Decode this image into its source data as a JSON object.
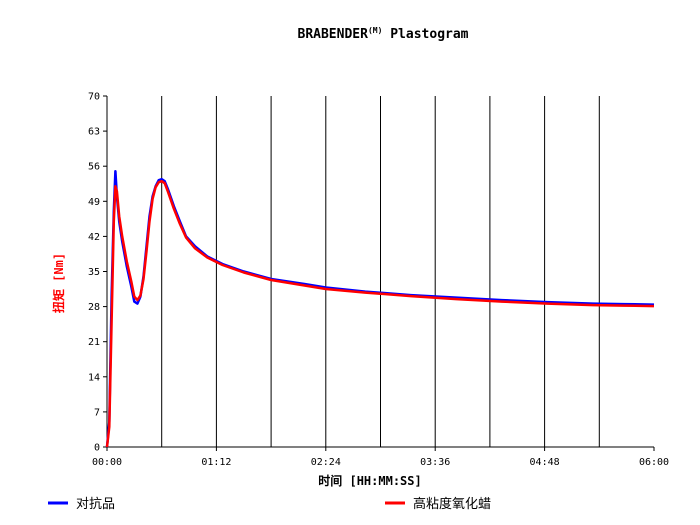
{
  "chart_data": {
    "type": "line",
    "title": "BRABENDER",
    "title_superscript": "(M)",
    "title_rest": " Plastogram",
    "xlabel": "时间 [HH:MM:SS]",
    "ylabel": "扭矩 [Nm]",
    "ylabel_color": "#ff0000",
    "xlim": [
      0,
      360
    ],
    "ylim": [
      0,
      70
    ],
    "x_unit": "minutes",
    "x_ticks": [
      {
        "value": 0,
        "label": "00:00"
      },
      {
        "value": 72,
        "label": "01:12"
      },
      {
        "value": 144,
        "label": "02:24"
      },
      {
        "value": 216,
        "label": "03:36"
      },
      {
        "value": 288,
        "label": "04:48"
      },
      {
        "value": 360,
        "label": "06:00"
      }
    ],
    "y_ticks": [
      0,
      7,
      14,
      21,
      28,
      35,
      42,
      49,
      56,
      63,
      70
    ],
    "vertical_gridlines": [
      36,
      72,
      108,
      144,
      180,
      216,
      252,
      288,
      324
    ],
    "legend_position": "bottom",
    "series": [
      {
        "name": "对抗品",
        "color": "#0000ff",
        "points": [
          [
            0,
            0
          ],
          [
            1.5,
            5
          ],
          [
            3,
            30
          ],
          [
            4.5,
            47
          ],
          [
            5.5,
            55
          ],
          [
            6.5,
            50
          ],
          [
            8,
            45
          ],
          [
            10,
            41
          ],
          [
            13,
            36
          ],
          [
            16,
            32
          ],
          [
            18,
            29
          ],
          [
            20,
            28.6
          ],
          [
            22,
            30
          ],
          [
            24,
            34
          ],
          [
            26,
            40
          ],
          [
            28,
            46
          ],
          [
            30,
            50
          ],
          [
            32,
            52
          ],
          [
            34,
            53.2
          ],
          [
            36,
            53.4
          ],
          [
            38,
            53
          ],
          [
            40,
            51.5
          ],
          [
            44,
            48
          ],
          [
            48,
            45
          ],
          [
            52,
            42
          ],
          [
            58,
            40
          ],
          [
            66,
            38
          ],
          [
            76,
            36.5
          ],
          [
            90,
            35
          ],
          [
            108,
            33.5
          ],
          [
            130,
            32.5
          ],
          [
            144,
            31.8
          ],
          [
            170,
            31
          ],
          [
            200,
            30.3
          ],
          [
            230,
            29.8
          ],
          [
            260,
            29.3
          ],
          [
            290,
            28.9
          ],
          [
            320,
            28.6
          ],
          [
            340,
            28.5
          ],
          [
            360,
            28.4
          ]
        ]
      },
      {
        "name": "高粘度氧化蜡",
        "color": "#ff0000",
        "points": [
          [
            0,
            0
          ],
          [
            1.5,
            4
          ],
          [
            3,
            25
          ],
          [
            4.5,
            45
          ],
          [
            5.5,
            52
          ],
          [
            6.5,
            51
          ],
          [
            8,
            46
          ],
          [
            10,
            42
          ],
          [
            13,
            37
          ],
          [
            16,
            33
          ],
          [
            18,
            30
          ],
          [
            20,
            29.3
          ],
          [
            22,
            30.2
          ],
          [
            24,
            33.5
          ],
          [
            26,
            39
          ],
          [
            28,
            45
          ],
          [
            30,
            49.5
          ],
          [
            32,
            51.8
          ],
          [
            34,
            52.8
          ],
          [
            36,
            53
          ],
          [
            38,
            52.6
          ],
          [
            40,
            51
          ],
          [
            44,
            47.5
          ],
          [
            48,
            44.5
          ],
          [
            52,
            41.8
          ],
          [
            58,
            39.6
          ],
          [
            66,
            37.8
          ],
          [
            76,
            36.3
          ],
          [
            90,
            34.8
          ],
          [
            108,
            33.3
          ],
          [
            130,
            32.2
          ],
          [
            144,
            31.5
          ],
          [
            170,
            30.8
          ],
          [
            200,
            30.1
          ],
          [
            230,
            29.5
          ],
          [
            260,
            29
          ],
          [
            290,
            28.6
          ],
          [
            320,
            28.3
          ],
          [
            340,
            28.2
          ],
          [
            360,
            28.1
          ]
        ]
      }
    ]
  }
}
